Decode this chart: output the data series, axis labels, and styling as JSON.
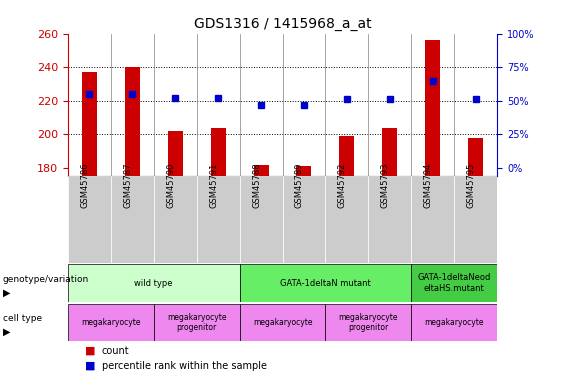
{
  "title": "GDS1316 / 1415968_a_at",
  "samples": [
    "GSM45786",
    "GSM45787",
    "GSM45790",
    "GSM45791",
    "GSM45788",
    "GSM45789",
    "GSM45792",
    "GSM45793",
    "GSM45794",
    "GSM45795"
  ],
  "bar_values": [
    237,
    240,
    202,
    204,
    182,
    181,
    199,
    204,
    256,
    198
  ],
  "dot_values": [
    55,
    55,
    52,
    52,
    47,
    47,
    51,
    51,
    65,
    51
  ],
  "y_min": 175,
  "y_max": 260,
  "y_ticks": [
    180,
    200,
    220,
    240,
    260
  ],
  "bar_color": "#cc0000",
  "dot_color": "#0000cc",
  "genotype_groups": [
    {
      "label": "wild type",
      "start": 0,
      "end": 4,
      "color": "#ccffcc"
    },
    {
      "label": "GATA-1deltaN mutant",
      "start": 4,
      "end": 8,
      "color": "#66ee66"
    },
    {
      "label": "GATA-1deltaNeod\neltaHS.mutant",
      "start": 8,
      "end": 10,
      "color": "#44cc44"
    }
  ],
  "cell_type_groups": [
    {
      "label": "megakaryocyte",
      "start": 0,
      "end": 2,
      "color": "#ee88ee"
    },
    {
      "label": "megakaryocyte\nprogenitor",
      "start": 2,
      "end": 4,
      "color": "#ee88ee"
    },
    {
      "label": "megakaryocyte",
      "start": 4,
      "end": 6,
      "color": "#ee88ee"
    },
    {
      "label": "megakaryocyte\nprogenitor",
      "start": 6,
      "end": 8,
      "color": "#ee88ee"
    },
    {
      "label": "megakaryocyte",
      "start": 8,
      "end": 10,
      "color": "#ee88ee"
    }
  ],
  "tick_label_color_left": "#cc0000",
  "tick_label_color_right": "#0000cc",
  "title_fontsize": 10,
  "bar_bottom": 175,
  "label_bg_color": "#cccccc"
}
